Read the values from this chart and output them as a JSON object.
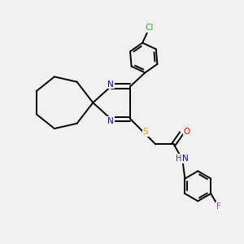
{
  "background_color": "#f0f0f0",
  "bond_color": "#000000",
  "atom_colors": {
    "N": "#0000cc",
    "S": "#ccaa00",
    "O": "#ff0000",
    "Cl": "#33aa33",
    "F": "#aa44aa",
    "H": "#444444",
    "C": "#000000"
  },
  "lw": 1.4
}
